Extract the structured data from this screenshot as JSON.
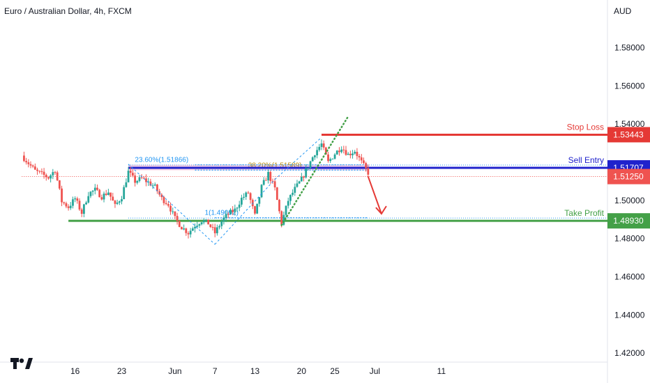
{
  "header": {
    "symbol_title": "Euro / Australian Dollar, 4h, FXCM"
  },
  "brand": {
    "logo_name": "tradingview-logo-icon"
  },
  "colors": {
    "up": "#26a69a",
    "down": "#ef5350",
    "red_line": "#e53935",
    "blue_line": "#1f22cc",
    "green_line": "#43a047",
    "fib": "#2196f3",
    "fib_gold": "#b8860b",
    "sell_zone": "#f5c2dc",
    "last_price_dotted": "#ef5350"
  },
  "chart_data": {
    "type": "candlestick",
    "title": "Euro / Australian Dollar, 4h, FXCM",
    "currency": "AUD",
    "ylim": [
      1.4153,
      1.605
    ],
    "grid": false,
    "y_ticks": [
      "1.58000",
      "1.56000",
      "1.54000",
      "1.50000",
      "1.48000",
      "1.46000",
      "1.44000",
      "1.42000"
    ],
    "x_ticks": [
      {
        "label": "16",
        "t": 3
      },
      {
        "label": "23",
        "t": 10
      },
      {
        "label": "Jun",
        "t": 18
      },
      {
        "label": "7",
        "t": 24
      },
      {
        "label": "13",
        "t": 30
      },
      {
        "label": "20",
        "t": 37
      },
      {
        "label": "25",
        "t": 42
      },
      {
        "label": "Jul",
        "t": 48
      },
      {
        "label": "11",
        "t": 58
      }
    ],
    "path": [
      [
        -5,
        1.5235
      ],
      [
        -3,
        1.5155
      ],
      [
        -1,
        1.512
      ],
      [
        0,
        1.516
      ],
      [
        1,
        1.4995
      ],
      [
        2,
        1.4965
      ],
      [
        3,
        1.501
      ],
      [
        4,
        1.4935
      ],
      [
        5,
        1.5035
      ],
      [
        6,
        1.5055
      ],
      [
        7,
        1.502
      ],
      [
        8,
        1.5045
      ],
      [
        9,
        1.497
      ],
      [
        10,
        1.502
      ],
      [
        11,
        1.515
      ],
      [
        12,
        1.51
      ],
      [
        13,
        1.5115
      ],
      [
        14,
        1.5095
      ],
      [
        15,
        1.507
      ],
      [
        16,
        1.501
      ],
      [
        17,
        1.498
      ],
      [
        18,
        1.4905
      ],
      [
        19,
        1.486
      ],
      [
        20,
        1.483
      ],
      [
        21,
        1.487
      ],
      [
        22,
        1.4895
      ],
      [
        23,
        1.488
      ],
      [
        24,
        1.483
      ],
      [
        25,
        1.489
      ],
      [
        26,
        1.493
      ],
      [
        27,
        1.495
      ],
      [
        28,
        1.501
      ],
      [
        29,
        1.504
      ],
      [
        30,
        1.492
      ],
      [
        31,
        1.507
      ],
      [
        32,
        1.514
      ],
      [
        33,
        1.506
      ],
      [
        34,
        1.488
      ],
      [
        35,
        1.5
      ],
      [
        36,
        1.506
      ],
      [
        37,
        1.511
      ],
      [
        38,
        1.518
      ],
      [
        39,
        1.525
      ],
      [
        40,
        1.5295
      ],
      [
        41,
        1.52
      ],
      [
        42,
        1.5245
      ],
      [
        43,
        1.528
      ],
      [
        44,
        1.524
      ],
      [
        45,
        1.526
      ],
      [
        46,
        1.52
      ],
      [
        47,
        1.5145
      ]
    ],
    "levels": [
      {
        "key": "stop_loss",
        "label": "Stop Loss",
        "value": 1.53443,
        "value_label": "1.53443",
        "color": "#e53935",
        "line_from_t": 40
      },
      {
        "key": "sell_entry",
        "label": "Sell Entry",
        "value": 1.51707,
        "value_label": "1.51707",
        "color": "#1f22cc",
        "line_from_t": 11
      },
      {
        "key": "last_price",
        "label": "",
        "value": 1.5125,
        "value_label": "1.51250",
        "color": "#ef5350",
        "line_from_t": -5
      },
      {
        "key": "take_profit",
        "label": "Take Profit",
        "value": 1.4893,
        "value_label": "1.48930",
        "color": "#43a047",
        "line_from_t": 2
      }
    ],
    "sell_zone": {
      "top": 1.51866,
      "bottom": 1.5158,
      "from_t": 11,
      "to_t": 47
    },
    "fib_labels": [
      {
        "text": "23.60%(1.51866)",
        "t": 16,
        "value": 1.51866
      },
      {
        "text": "38.20%(1.51589)",
        "t": 33,
        "value": 1.51589
      },
      {
        "text": "1(1.49092)",
        "t": 25,
        "value": 1.49092
      }
    ],
    "fib_lines": [
      {
        "value": 1.51866,
        "from_t": 21,
        "to_t": 47
      },
      {
        "value": 1.51589,
        "from_t": 21,
        "to_t": 47
      },
      {
        "value": 1.49092,
        "from_t": 24,
        "to_t": 47
      }
    ],
    "trend_dashes": [
      {
        "from": [
          11,
          1.519
        ],
        "to": [
          24,
          1.477
        ]
      },
      {
        "from": [
          24,
          1.477
        ],
        "to": [
          33,
          1.511
        ]
      },
      {
        "from": [
          33,
          1.511
        ],
        "to": [
          40,
          1.533
        ]
      }
    ],
    "channel_dots": [
      {
        "from": [
          34,
          1.487
        ],
        "to": [
          44,
          1.544
        ]
      }
    ],
    "arrow": {
      "from": [
        47,
        1.5125
      ],
      "to": [
        49,
        1.493
      ]
    }
  }
}
